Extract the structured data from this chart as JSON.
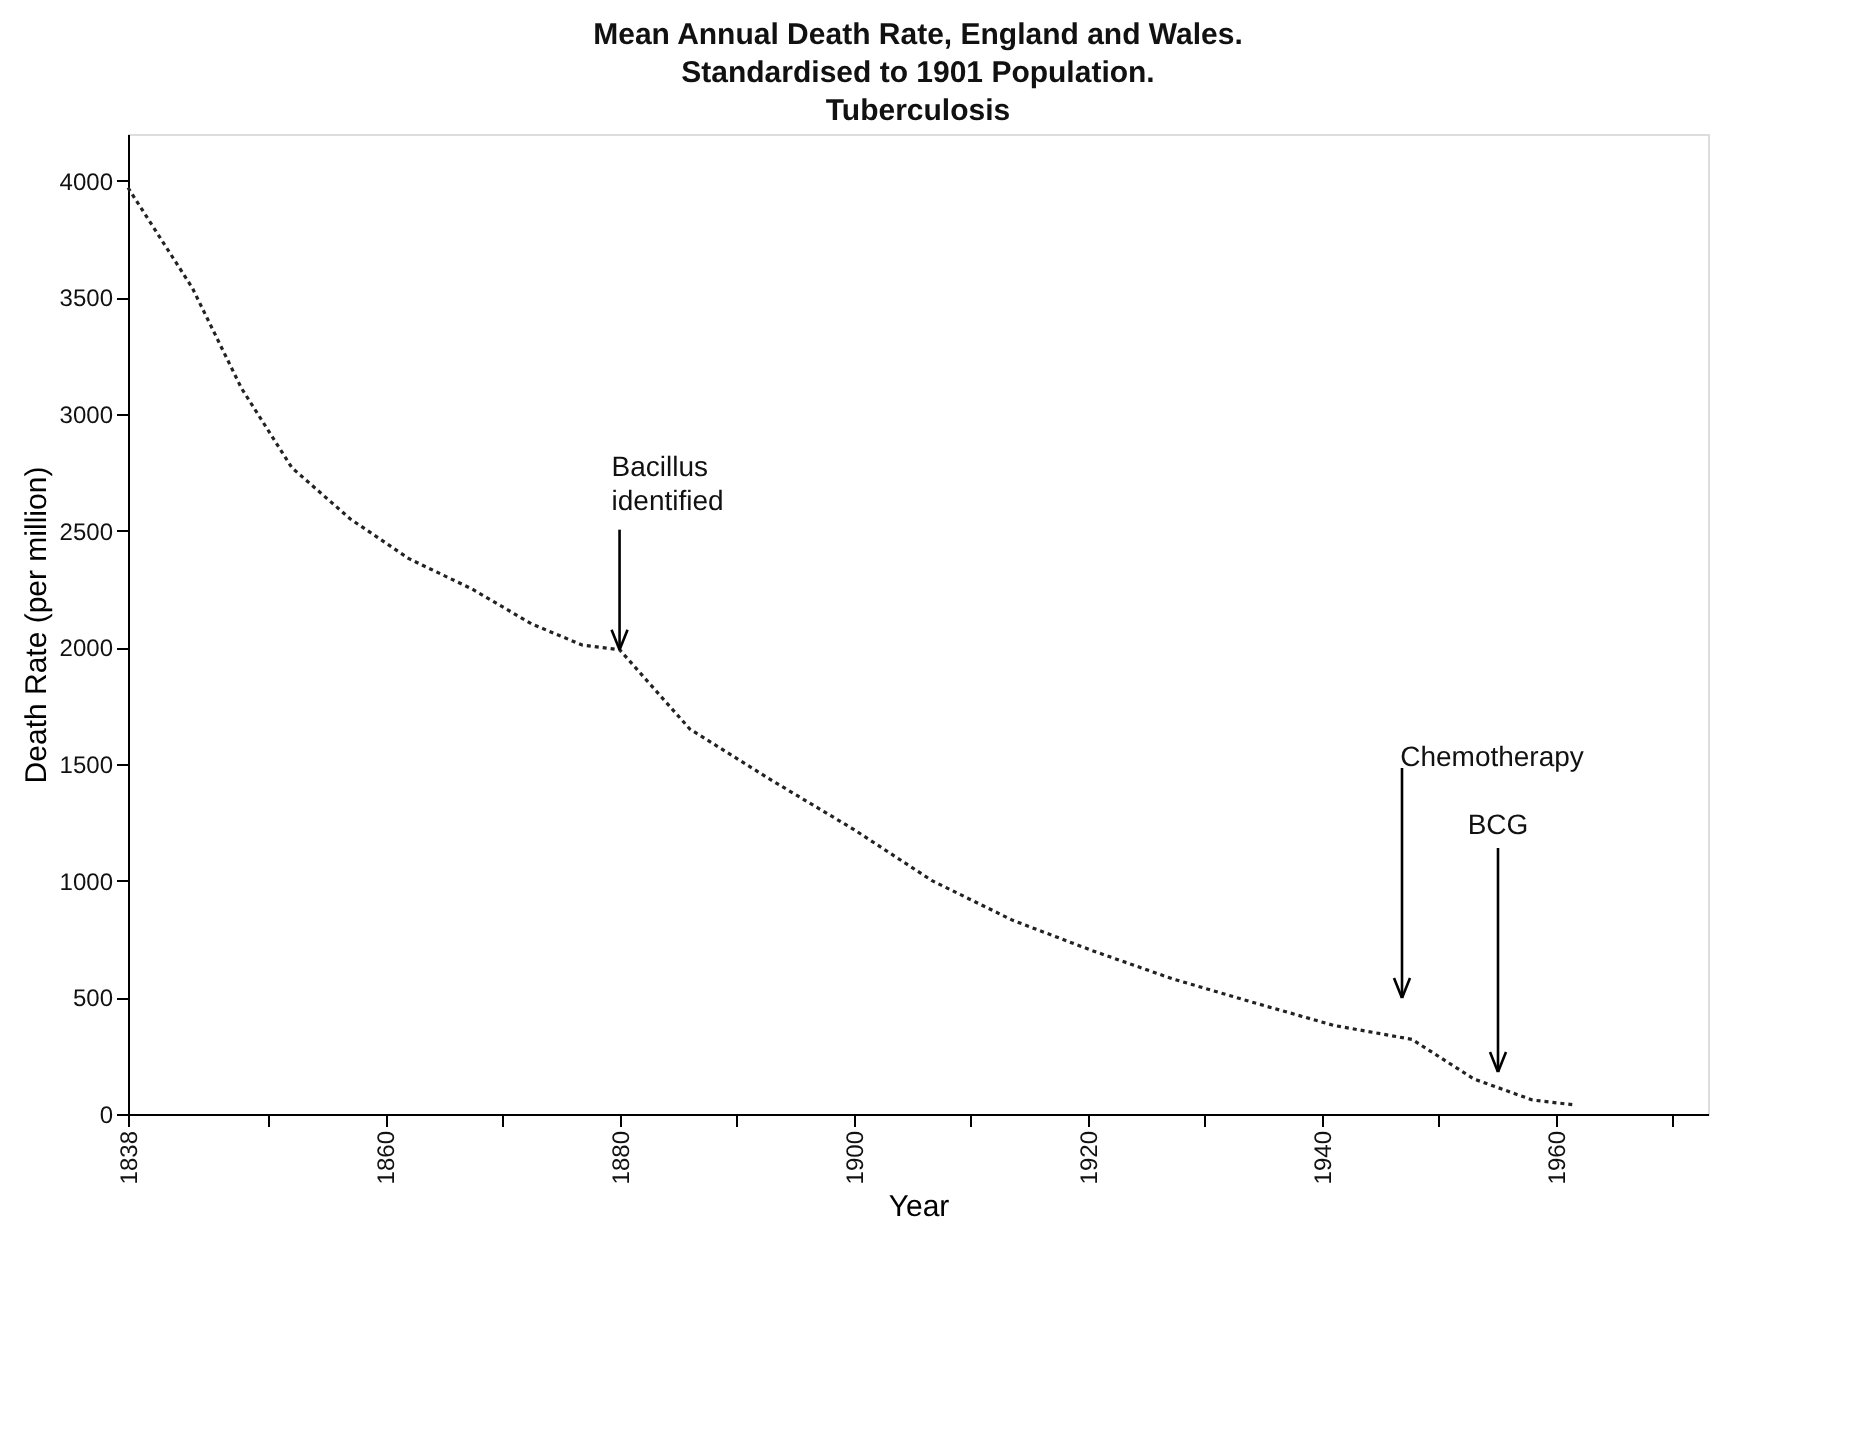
{
  "chart_data": {
    "type": "line",
    "title": [
      "Mean Annual Death Rate, England and Wales.",
      "Standardised to 1901 Population.",
      "Tuberculosis"
    ],
    "xlabel": "Year",
    "ylabel": "Death Rate (per million)",
    "x": [
      1838,
      1843.5,
      1847.7,
      1852,
      1857,
      1862,
      1867.4,
      1872.5,
      1876.8,
      1880,
      1886,
      1893,
      1900,
      1906.7,
      1913.6,
      1920.4,
      1927.2,
      1934,
      1941,
      1947.7,
      1953,
      1958,
      1961.4
    ],
    "series": [
      {
        "color": "#222222",
        "values": [
          3970,
          3540,
          3110,
          2770,
          2550,
          2380,
          2250,
          2100,
          2010,
          1990,
          1650,
          1430,
          1220,
          1000,
          830,
          700,
          580,
          480,
          380,
          320,
          150,
          60,
          40
        ]
      }
    ],
    "xlim": [
      1838,
      1973
    ],
    "ylim": [
      0,
      4200
    ],
    "xticks": [
      1838,
      {
        "value": 1850,
        "label": null
      },
      1860,
      {
        "value": 1870,
        "label": null
      },
      1880,
      {
        "value": 1890,
        "label": null
      },
      1900,
      {
        "value": 1910,
        "label": null
      },
      1920,
      {
        "value": 1930,
        "label": null
      },
      1940,
      {
        "value": 1950,
        "label": null
      },
      1960,
      {
        "value": 1970,
        "label": null
      }
    ],
    "yticks": [
      0,
      500,
      1000,
      1500,
      2000,
      2500,
      3000,
      3500,
      4000
    ],
    "annotations": [
      {
        "text": "Bacillus\nidentified",
        "x": 1880,
        "y": 1990
      },
      "Chemotherapy",
      "BCG"
    ],
    "grid": false,
    "marker": "none",
    "line_style": "dotted"
  }
}
